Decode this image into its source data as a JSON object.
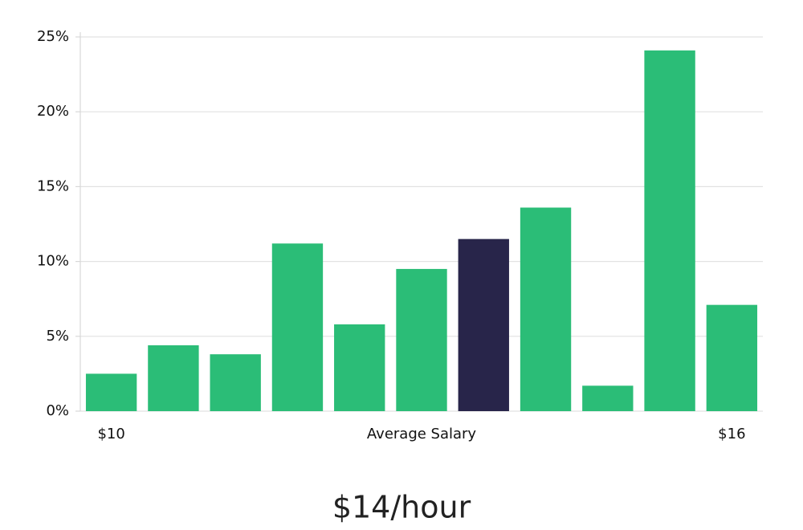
{
  "chart_data": {
    "type": "bar",
    "title": "$14/hour",
    "x_label": "Average Salary",
    "categories": [
      "$10",
      null,
      null,
      null,
      null,
      null,
      null,
      null,
      null,
      null,
      "$16"
    ],
    "values": [
      2.5,
      4.4,
      3.8,
      11.2,
      5.8,
      9.5,
      11.5,
      13.6,
      1.7,
      24.1,
      7.1
    ],
    "colors": [
      "#2bbd77",
      "#2bbd77",
      "#2bbd77",
      "#2bbd77",
      "#2bbd77",
      "#2bbd77",
      "#28254a",
      "#2bbd77",
      "#2bbd77",
      "#2bbd77",
      "#2bbd77"
    ],
    "ylim": [
      0,
      25
    ],
    "yticks": [
      {
        "value": 0,
        "label": "0%"
      },
      {
        "value": 5,
        "label": "5%"
      },
      {
        "value": 10,
        "label": "10%"
      },
      {
        "value": 15,
        "label": "15%"
      },
      {
        "value": 20,
        "label": "20%"
      },
      {
        "value": 25,
        "label": "25%"
      }
    ],
    "grid": true
  }
}
